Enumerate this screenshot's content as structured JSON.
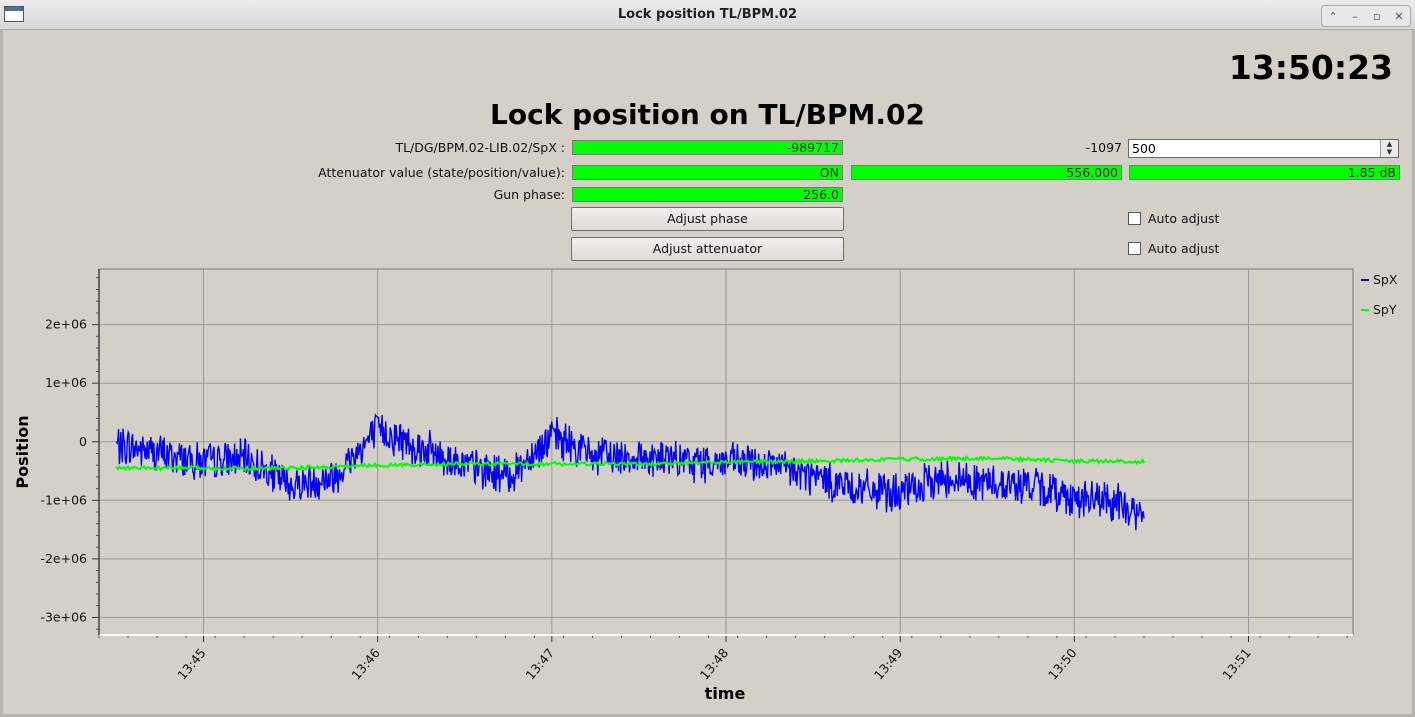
{
  "window": {
    "title": "Lock position TL/BPM.02"
  },
  "clock": "13:50:23",
  "main_title": "Lock position on TL/BPM.02",
  "rows": {
    "spx_label": "TL/DG/BPM.02-LIB.02/SpX :",
    "spx_value": "-989717",
    "setpoint_label": "-1097",
    "setpoint_value": "500",
    "atten_label": "Attenuator value (state/position/value):",
    "atten_state": "ON",
    "atten_position": "556.000",
    "atten_value": "1.85 dB",
    "gun_label": "Gun phase:",
    "gun_value": "256.0"
  },
  "buttons": {
    "adjust_phase": "Adjust phase",
    "adjust_attenuator": "Adjust attenuator"
  },
  "checkboxes": {
    "auto_adjust_1": "Auto adjust",
    "auto_adjust_2": "Auto adjust"
  },
  "colors": {
    "indicator_green": "#00ff00",
    "spx": "#0000ff",
    "spy": "#00ff00"
  },
  "chart_data": {
    "type": "line",
    "xlabel": "time",
    "ylabel": "Position",
    "x_ticks": [
      "13:45",
      "13:46",
      "13:47",
      "13:48",
      "13:49",
      "13:50",
      "13:51"
    ],
    "x_range_min": [
      13.74,
      13.86
    ],
    "y_ticks": [
      "2e+06",
      "1e+06",
      "0",
      "-1e+06",
      "-2e+06",
      "-3e+06"
    ],
    "ylim": [
      -3300000.0,
      2950000.0
    ],
    "grid": true,
    "legend_placement": "right",
    "series": [
      {
        "name": "SpX",
        "color": "#0000ff",
        "x": [
          "13:44:30",
          "13:45:00",
          "13:45:15",
          "13:45:30",
          "13:45:45",
          "13:46:00",
          "13:46:15",
          "13:46:30",
          "13:46:45",
          "13:47:00",
          "13:47:15",
          "13:47:30",
          "13:47:45",
          "13:48:00",
          "13:48:15",
          "13:48:30",
          "13:48:45",
          "13:49:00",
          "13:49:15",
          "13:49:30",
          "13:49:45",
          "13:50:00",
          "13:50:15",
          "13:50:24"
        ],
        "values": [
          -50000,
          -350000,
          -300000,
          -750000,
          -600000,
          200000,
          -100000,
          -400000,
          -600000,
          100000,
          -250000,
          -250000,
          -350000,
          -350000,
          -400000,
          -600000,
          -800000,
          -900000,
          -600000,
          -700000,
          -750000,
          -950000,
          -1050000,
          -1300000
        ]
      },
      {
        "name": "SpY",
        "color": "#00ff00",
        "x": [
          "13:44:30",
          "13:45:00",
          "13:45:30",
          "13:46:00",
          "13:46:30",
          "13:47:00",
          "13:47:30",
          "13:48:00",
          "13:48:30",
          "13:49:00",
          "13:49:30",
          "13:50:00",
          "13:50:24"
        ],
        "values": [
          -450000,
          -450000,
          -450000,
          -400000,
          -380000,
          -380000,
          -380000,
          -350000,
          -330000,
          -300000,
          -280000,
          -330000,
          -340000
        ]
      }
    ]
  }
}
